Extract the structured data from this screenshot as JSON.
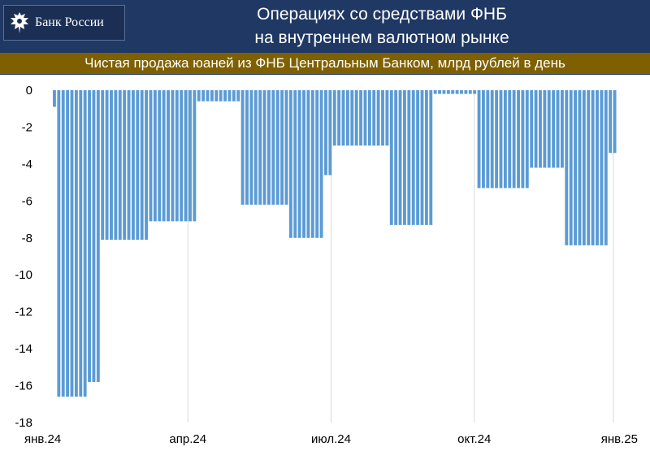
{
  "header": {
    "logo_text": "Банк России",
    "title_line1": "Операциях со средствами ФНБ",
    "title_line2": "на внутреннем валютном рынке",
    "subtitle": "Чистая продажа юаней из ФНБ Центральным Банком, млрд рублей в день"
  },
  "colors": {
    "header_bg": "#1f3864",
    "subtitle_bg": "#7f6000",
    "bar": "#5b9bd5",
    "gridline": "#d9d9d9"
  },
  "chart_data": {
    "type": "bar",
    "title": "Чистая продажа юаней из ФНБ Центральным Банком, млрд рублей в день",
    "xlabel": "",
    "ylabel": "",
    "ylim": [
      -18,
      0
    ],
    "y_ticks": [
      0,
      -2,
      -4,
      -6,
      -8,
      -10,
      -12,
      -14,
      -16,
      -18
    ],
    "y_tick_labels": [
      "0",
      "-2",
      "-4",
      "-6",
      "-8",
      "-10",
      "-12",
      "-14",
      "-16",
      "-18"
    ],
    "x_tick_labels": [
      "янв.24",
      "апр.24",
      "июл.24",
      "окт.24",
      "янв.25"
    ],
    "grid": "vertical",
    "segments": [
      {
        "value": -0.9,
        "days": 1
      },
      {
        "value": -16.6,
        "days": 7
      },
      {
        "value": -15.8,
        "days": 3
      },
      {
        "value": -8.1,
        "days": 11
      },
      {
        "value": -7.1,
        "days": 11
      },
      {
        "value": -0.6,
        "days": 10
      },
      {
        "value": -6.2,
        "days": 11
      },
      {
        "value": -8.0,
        "days": 8
      },
      {
        "value": -4.6,
        "days": 2
      },
      {
        "value": -3.0,
        "days": 13
      },
      {
        "value": -7.3,
        "days": 10
      },
      {
        "value": -0.2,
        "days": 10
      },
      {
        "value": -5.3,
        "days": 12
      },
      {
        "value": -4.2,
        "days": 8
      },
      {
        "value": -8.4,
        "days": 10
      },
      {
        "value": -3.4,
        "days": 2
      }
    ]
  }
}
